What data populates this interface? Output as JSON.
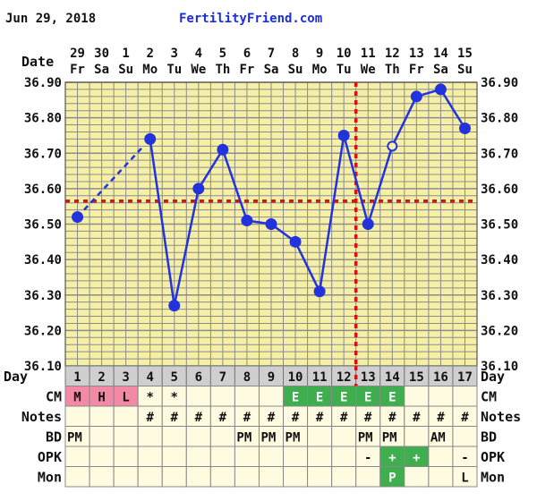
{
  "header": {
    "date": "Jun 29, 2018",
    "site": "FertilityFriend.com",
    "date_row_label": "Date"
  },
  "chart_data": {
    "type": "line",
    "dates": [
      "29",
      "30",
      "1",
      "2",
      "3",
      "4",
      "5",
      "6",
      "7",
      "8",
      "9",
      "10",
      "11",
      "12",
      "13",
      "14",
      "15"
    ],
    "weekdays": [
      "Fr",
      "Sa",
      "Su",
      "Mo",
      "Tu",
      "We",
      "Th",
      "Fr",
      "Sa",
      "Su",
      "Mo",
      "Tu",
      "We",
      "Th",
      "Fr",
      "Sa",
      "Su"
    ],
    "cycle_days": [
      "1",
      "2",
      "3",
      "4",
      "5",
      "6",
      "7",
      "8",
      "9",
      "10",
      "11",
      "12",
      "13",
      "14",
      "15",
      "16",
      "17"
    ],
    "y_ticks": [
      "36.10",
      "36.20",
      "36.30",
      "36.40",
      "36.50",
      "36.60",
      "36.70",
      "36.80",
      "36.90"
    ],
    "ylim": [
      36.1,
      36.9
    ],
    "temps": [
      36.52,
      null,
      null,
      36.74,
      36.27,
      36.6,
      36.71,
      36.51,
      36.5,
      36.45,
      36.31,
      36.75,
      36.5,
      36.72,
      36.86,
      36.88,
      36.77
    ],
    "open_circle_days": [
      13
    ],
    "coverline": 36.565,
    "ovulation_day": 13,
    "grid": true,
    "colors": {
      "background": "#f6efa6",
      "grid": "#8c8c8c",
      "line": "#2233dd",
      "coverline": "#dd1111",
      "day_cell": "#cfcfcf",
      "menses": "#f28aa6",
      "egg_white": "#3fae4f",
      "positive": "#3fae4f"
    },
    "rows": [
      {
        "label": "CM",
        "cells": [
          "M",
          "H",
          "L",
          "*",
          "*",
          "",
          "",
          "",
          "",
          "E",
          "E",
          "E",
          "E",
          "E",
          "",
          "",
          ""
        ]
      },
      {
        "label": "Notes",
        "cells": [
          "",
          "",
          "",
          "#",
          "#",
          "#",
          "#",
          "#",
          "#",
          "#",
          "#",
          "#",
          "#",
          "#",
          "#",
          "#",
          "#"
        ]
      },
      {
        "label": "BD",
        "cells": [
          "PM",
          "",
          "",
          "",
          "",
          "",
          "",
          "PM",
          "PM",
          "PM",
          "",
          "",
          "PM",
          "PM",
          "",
          "AM",
          ""
        ]
      },
      {
        "label": "OPK",
        "cells": [
          "",
          "",
          "",
          "",
          "",
          "",
          "",
          "",
          "",
          "",
          "",
          "",
          "-",
          "+",
          "+",
          "",
          "-"
        ]
      },
      {
        "label": "Mon",
        "cells": [
          "",
          "",
          "",
          "",
          "",
          "",
          "",
          "",
          "",
          "",
          "",
          "",
          "",
          "P",
          "",
          "",
          "L"
        ]
      }
    ],
    "day_row_label": "Day"
  }
}
